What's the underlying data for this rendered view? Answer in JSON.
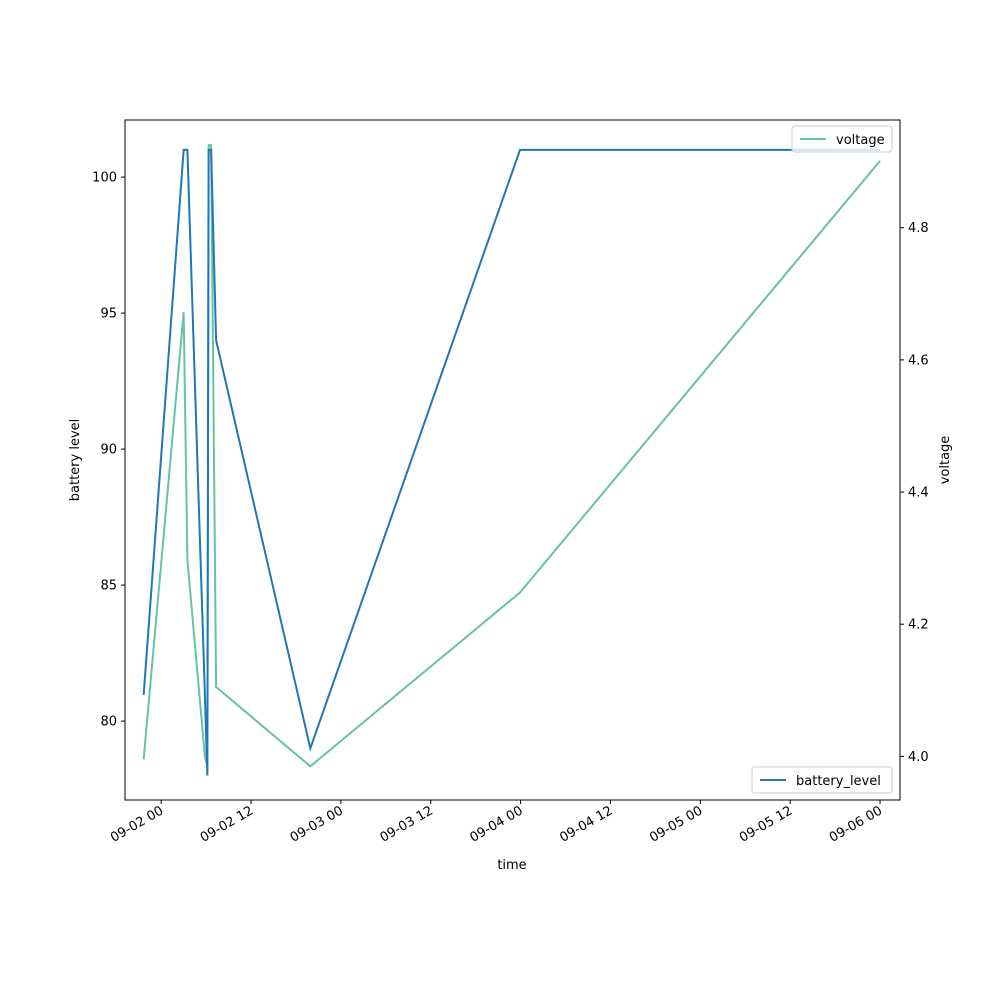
{
  "chart_data": {
    "type": "line",
    "xlabel": "time",
    "ylabel_left": "battery level",
    "ylabel_right": "voltage",
    "x_ticks": [
      "09-02 00",
      "09-02 12",
      "09-03 00",
      "09-03 12",
      "09-04 00",
      "09-04 12",
      "09-05 00",
      "09-05 12",
      "09-06 00"
    ],
    "x_tick_times": [
      "2023-09-02 00:00",
      "2023-09-02 12:00",
      "2023-09-03 00:00",
      "2023-09-03 12:00",
      "2023-09-04 00:00",
      "2023-09-04 12:00",
      "2023-09-05 00:00",
      "2023-09-05 12:00",
      "2023-09-06 00:00"
    ],
    "xlim": [
      "2023-09-01 19:10",
      "2023-09-06 02:40"
    ],
    "y_left_ticks": [
      80,
      85,
      90,
      95,
      100
    ],
    "y_left_lim": [
      77.1,
      102.1
    ],
    "y_right_ticks": [
      4.0,
      4.2,
      4.4,
      4.6,
      4.8
    ],
    "y_right_lim": [
      3.934,
      4.963
    ],
    "series": [
      {
        "name": "battery_level",
        "axis": "left",
        "color": "#1f77b4",
        "x": [
          "2023-09-01 21:40",
          "2023-09-02 03:00",
          "2023-09-02 03:30",
          "2023-09-02 05:50",
          "2023-09-02 06:10",
          "2023-09-02 06:20",
          "2023-09-02 06:40",
          "2023-09-02 07:20",
          "2023-09-02 19:55",
          "2023-09-03 23:55",
          "2023-09-05 23:55"
        ],
        "y": [
          81,
          101,
          101,
          81,
          78,
          101,
          101,
          94,
          79,
          101,
          101
        ]
      },
      {
        "name": "voltage",
        "axis": "right",
        "color": "#66c2a5",
        "x": [
          "2023-09-01 21:40",
          "2023-09-02 03:00",
          "2023-09-02 03:30",
          "2023-09-02 05:50",
          "2023-09-02 06:10",
          "2023-09-02 06:20",
          "2023-09-02 06:40",
          "2023-09-02 07:20",
          "2023-09-02 19:55",
          "2023-09-03 23:55",
          "2023-09-05 23:55"
        ],
        "y": [
          3.997,
          4.672,
          4.297,
          4.0,
          3.985,
          4.925,
          4.925,
          4.105,
          3.985,
          4.248,
          4.9
        ]
      }
    ],
    "legends": [
      {
        "series": "voltage",
        "placement": "top-right"
      },
      {
        "series": "battery_level",
        "placement": "bottom-right"
      }
    ],
    "grid": false
  }
}
